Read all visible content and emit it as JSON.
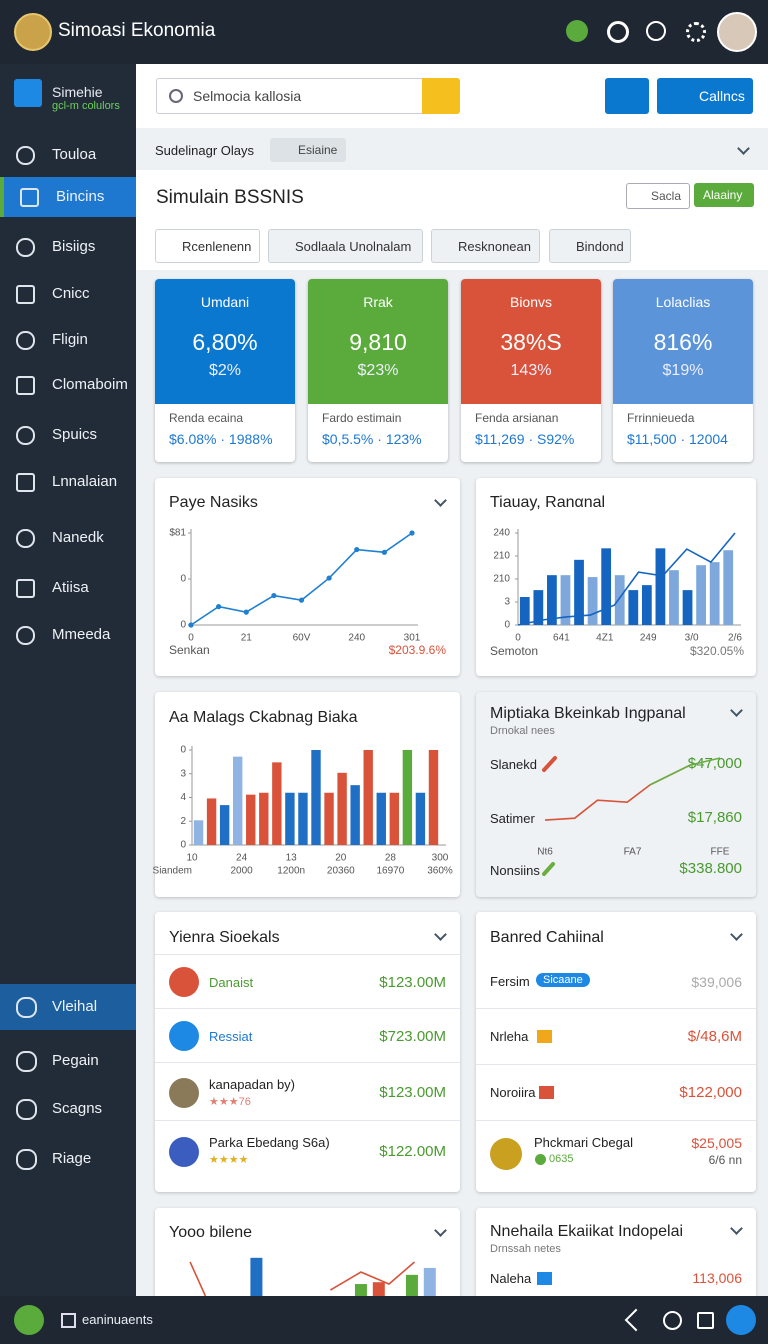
{
  "header": {
    "title": "Simoasi Ekonomia"
  },
  "sidebar": {
    "brand": "Simehie",
    "brand_sub": "gcl-m colulors",
    "items": [
      "Touloa",
      "Bincins",
      "Bisiigs",
      "Cnicc",
      "Fligin",
      "Clomaboim",
      "Spuics",
      "Lnnalaian",
      "Nanedk",
      "Atiisa",
      "Mmeeda"
    ],
    "bottom_items": [
      "Vleihal",
      "Pegain",
      "Scagns",
      "Riage"
    ]
  },
  "toolbar": {
    "search_placeholder": "Selmocia kallosia",
    "button": "Callncs"
  },
  "breadcrumb": {
    "label": "Sudelinagr Olays",
    "chip": "Esiaine"
  },
  "section": {
    "title": "Simulain BSSNIS",
    "button1": "Sacla",
    "button2": "Alaainy",
    "tabs": [
      "Rcenlenenn",
      "Sodlaala Unolnalam",
      "Resknonean",
      "Bindond"
    ]
  },
  "kpis": [
    {
      "title": "Umdani",
      "value": "6,80%",
      "sub": "$2%",
      "footer_label": "Renda ecaina",
      "footer_value": "$6.08% · 1988%",
      "color": "#0b78d0"
    },
    {
      "title": "Rrak",
      "value": "9,810",
      "sub": "$23%",
      "footer_label": "Fardo estimain",
      "footer_value": "$0,5.5% · 123%",
      "color": "#5aab3c"
    },
    {
      "title": "Bionvs",
      "value": "38%S",
      "sub": "143%",
      "footer_label": "Fenda arsianan",
      "footer_value": "$11,269 · S92%",
      "color": "#d9533a"
    },
    {
      "title": "Lolaclias",
      "value": "816%",
      "sub": "$19%",
      "footer_label": "Frrinnieueda",
      "footer_value": "$11,500 · 12004",
      "color": "#5b94d8"
    }
  ],
  "charts": [
    {
      "type": "line",
      "title": "Paye Nasiks",
      "ylim": [
        0,
        100
      ],
      "yticks": [
        {
          "value": 100,
          "label": "$81"
        },
        {
          "value": 50,
          "label": "0"
        },
        0
      ],
      "markers": true,
      "lines": [
        {
          "color": "#1f7fd0",
          "values": [
            0,
            20,
            14,
            32,
            27,
            51,
            82,
            79,
            100
          ]
        }
      ],
      "xlabels": [
        "0",
        "21",
        "60V",
        "240",
        "301"
      ],
      "footer_left": "Senkan",
      "footer_right": "$203.9.6%"
    },
    {
      "type": "combo",
      "title": "Tiauay, Ranαnal",
      "ylim": [
        0,
        240
      ],
      "yticks": [
        240,
        {
          "value": 180,
          "label": "210"
        },
        {
          "value": 120,
          "label": "210"
        },
        {
          "value": 60,
          "label": "3"
        },
        0
      ],
      "bar_values": [
        73,
        91,
        130,
        130,
        170,
        125,
        200,
        130,
        91,
        104,
        200,
        143,
        91,
        156,
        164,
        195
      ],
      "bar_colors": [
        "#1565c0",
        "#1565c0",
        "#1565c0",
        "#7ea7dc",
        "#1565c0",
        "#7ea7dc",
        "#1565c0",
        "#7ea7dc",
        "#1565c0",
        "#1565c0",
        "#1565c0",
        "#7ea7dc",
        "#1565c0",
        "#7ea7dc",
        "#7ea7dc",
        "#7ea7dc"
      ],
      "lines": [
        {
          "color": "#1565c0",
          "values": [
            0,
            13,
            21,
            26,
            52,
            138,
            128,
            198,
            164,
            240
          ]
        }
      ],
      "xlabels": [
        "0",
        "641",
        "4Z1",
        "249",
        "3/0",
        "2/6"
      ],
      "footer_left": "Semoton",
      "footer_right": "$320.05%"
    },
    {
      "type": "bar",
      "title": "Aa Malags Ckabnag Biaka",
      "ylim": [
        0,
        100
      ],
      "yticks": [
        {
          "value": 100,
          "label": "0"
        },
        {
          "value": 75,
          "label": "3"
        },
        {
          "value": 50,
          "label": "4"
        },
        {
          "value": 25,
          "label": "2"
        },
        0
      ],
      "bar_values": [
        26,
        49,
        42,
        93,
        53,
        55,
        87,
        55,
        55,
        100,
        55,
        76,
        63,
        100,
        55,
        55,
        100,
        55,
        100
      ],
      "bar_colors": [
        "#8fb4e3",
        "#d9533a",
        "#1f6fc5",
        "#8fb4e3",
        "#d9533a",
        "#d9533a",
        "#d9533a",
        "#1f6fc5",
        "#1f6fc5",
        "#1f6fc5",
        "#d9533a",
        "#d9533a",
        "#1f6fc5",
        "#d9533a",
        "#1f6fc5",
        "#d9533a",
        "#5aab3c",
        "#1f6fc5",
        "#d9533a"
      ],
      "xlabels": [
        "10",
        "24",
        "13",
        "20",
        "28",
        "300"
      ],
      "xlabels2": [
        "Siandem",
        "2000",
        "1200n",
        "20360",
        "16970",
        "360%"
      ]
    },
    {
      "type": "line",
      "title": "Miptiaka Bkeinkab Ingpanal",
      "subtitle": "Drnokal nees",
      "ylim": [
        0,
        100
      ],
      "xlim": [
        0,
        100
      ],
      "lines": [
        {
          "color": "#d9533a",
          "x": [
            0,
            17,
            30,
            47,
            60,
            83
          ],
          "values": [
            3,
            6,
            34,
            31,
            58,
            89
          ]
        },
        {
          "color": "#6aae3f",
          "x": [
            60,
            83,
            100
          ],
          "values": [
            58,
            89,
            100
          ]
        }
      ],
      "xlabels": [
        "Nt6",
        "FA7",
        "FFE"
      ],
      "rows": [
        {
          "label": "Slanekd",
          "value": "$47,000"
        },
        {
          "label": "Satimer",
          "value": "$17,860"
        },
        {
          "label": "Nonsiins",
          "value": "$338.800"
        }
      ]
    },
    {
      "type": "combo",
      "title": "Yooo bilene",
      "ylim": [
        0,
        100
      ],
      "xlim": [
        0,
        100
      ],
      "bar_x": [
        28,
        69,
        76,
        89,
        96
      ],
      "bar_values": [
        83,
        26,
        30,
        46,
        61
      ],
      "bar_colors": [
        "#1f6fc5",
        "#5aab3c",
        "#d9533a",
        "#5aab3c",
        "#8fb4e3"
      ],
      "lines": [
        {
          "color": "#d9533a",
          "x": [
            2,
            8,
            50,
            57,
            69,
            80,
            90
          ],
          "values": [
            74,
            0,
            null,
            13,
            52,
            26,
            74
          ]
        }
      ]
    }
  ],
  "list_left": {
    "title": "Yienra Sioekals",
    "items": [
      {
        "name": "Danaist",
        "value": "$123.00M"
      },
      {
        "name": "Ressiat",
        "value": "$723.00M"
      },
      {
        "name": "kanapadan by)",
        "rating": "★★★76",
        "value": "$123.00M"
      },
      {
        "name": "Parka Ebedang S6a)",
        "rating": "★★★★",
        "value": "$122.00M"
      }
    ]
  },
  "list_right": {
    "title": "Banred Cahiinal",
    "items": [
      {
        "name": "Fersim",
        "chip": "Sicaane",
        "value": "$39,006"
      },
      {
        "name": "Nrleha",
        "value": "$/48,6M"
      },
      {
        "name": "Noroiira",
        "value": "$122,000"
      },
      {
        "name": "Phckmari Cbegal",
        "sub": "0635",
        "value": "$25,005",
        "value2": "6/6 nn"
      }
    ]
  },
  "panel_bottom_right": {
    "title": "Nnehaila Ekaiikat Indopelai",
    "subtitle": "Drnssah netes",
    "row_label": "Naleha",
    "row_value": "113,006"
  },
  "footer": {
    "label": "eaninuaents"
  }
}
